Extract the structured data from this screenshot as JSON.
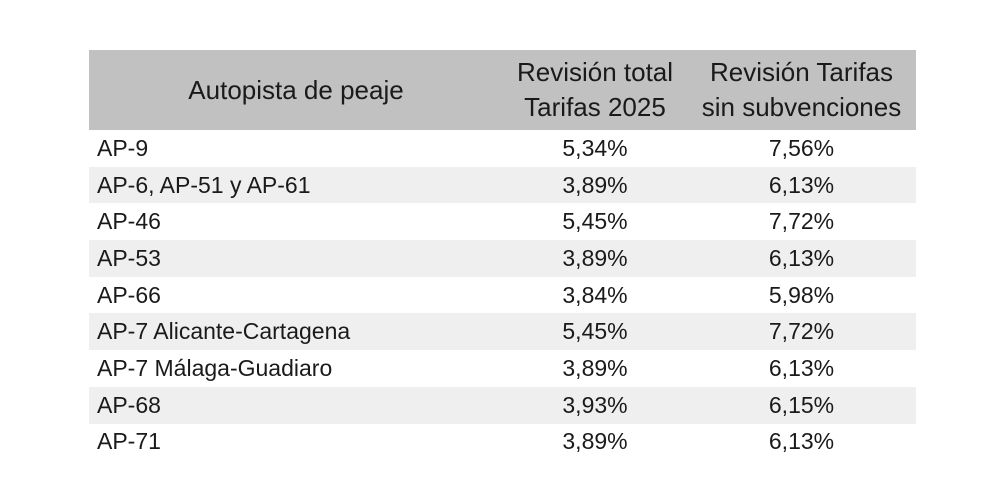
{
  "chart_data": {
    "type": "table",
    "title": "",
    "columns": [
      "Autopista de peaje",
      "Revisión total Tarifas 2025",
      "Revisión Tarifas sin subvenciones"
    ],
    "rows": [
      [
        "AP-9",
        "5,34%",
        "7,56%"
      ],
      [
        "AP-6, AP-51 y AP-61",
        "3,89%",
        "6,13%"
      ],
      [
        "AP-46",
        "5,45%",
        "7,72%"
      ],
      [
        "AP-53",
        "3,89%",
        "6,13%"
      ],
      [
        "AP-66",
        "3,84%",
        "5,98%"
      ],
      [
        "AP-7 Alicante-Cartagena",
        "5,45%",
        "7,72%"
      ],
      [
        "AP-7 Málaga-Guadiaro",
        "3,89%",
        "6,13%"
      ],
      [
        "AP-68",
        "3,93%",
        "6,15%"
      ],
      [
        "AP-71",
        "3,89%",
        "6,13%"
      ]
    ],
    "layout": {
      "header_two_line_wrap": true,
      "zebra_striping": true,
      "value_format": "percent-comma-decimal"
    }
  },
  "header": {
    "col1": {
      "line1": "Autopista de peaje"
    },
    "col2": {
      "line1": "Revisión total",
      "line2": "Tarifas 2025"
    },
    "col3": {
      "line1": "Revisión Tarifas",
      "line2": "sin subvenciones"
    }
  },
  "colors": {
    "header_bg": "#c1c1c1",
    "row_bg": "#ffffff",
    "row_alt_bg": "#efefef",
    "text": "#1a1a1a",
    "page_bg": "#ffffff"
  }
}
